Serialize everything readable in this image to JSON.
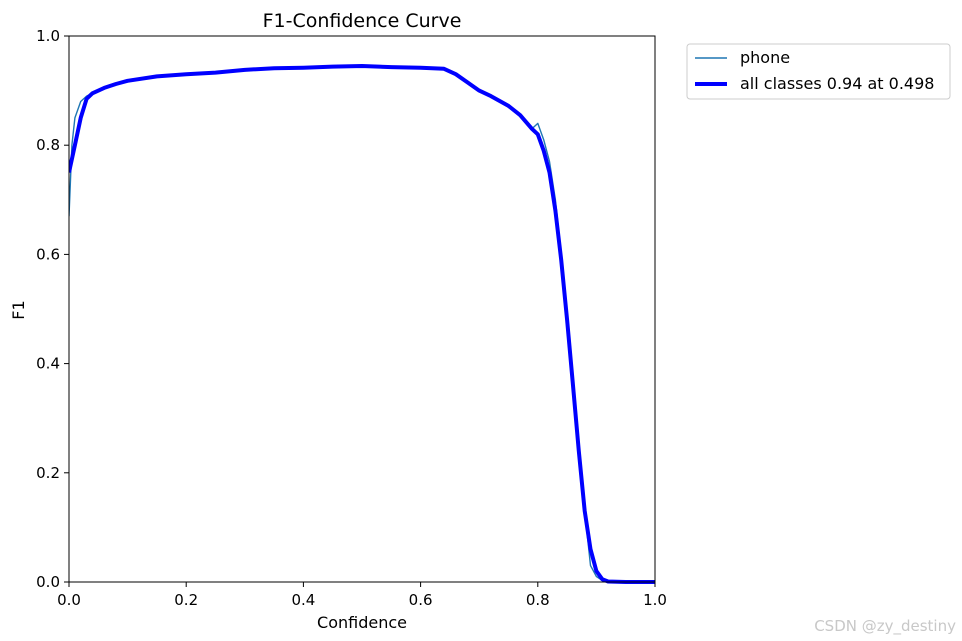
{
  "chart_data": {
    "type": "line",
    "title": "F1-Confidence Curve",
    "xlabel": "Confidence",
    "ylabel": "F1",
    "xlim": [
      0.0,
      1.0
    ],
    "ylim": [
      0.0,
      1.0
    ],
    "xticks": [
      "0.0",
      "0.2",
      "0.4",
      "0.6",
      "0.8",
      "1.0"
    ],
    "yticks": [
      "0.0",
      "0.2",
      "0.4",
      "0.6",
      "0.8",
      "1.0"
    ],
    "grid": false,
    "legend_position": "outside-top-right",
    "series": [
      {
        "name": "phone",
        "color": "#1f77b4",
        "x": [
          0.0,
          0.005,
          0.01,
          0.02,
          0.03,
          0.04,
          0.06,
          0.08,
          0.1,
          0.15,
          0.2,
          0.25,
          0.3,
          0.35,
          0.4,
          0.45,
          0.5,
          0.55,
          0.6,
          0.64,
          0.66,
          0.68,
          0.7,
          0.72,
          0.75,
          0.77,
          0.79,
          0.8,
          0.81,
          0.82,
          0.83,
          0.84,
          0.85,
          0.86,
          0.87,
          0.88,
          0.89,
          0.9,
          0.91,
          0.92,
          0.95,
          1.0
        ],
        "y": [
          0.67,
          0.8,
          0.85,
          0.88,
          0.89,
          0.895,
          0.905,
          0.912,
          0.918,
          0.926,
          0.93,
          0.933,
          0.938,
          0.941,
          0.942,
          0.944,
          0.945,
          0.943,
          0.942,
          0.94,
          0.93,
          0.915,
          0.9,
          0.89,
          0.872,
          0.855,
          0.83,
          0.84,
          0.81,
          0.77,
          0.7,
          0.6,
          0.49,
          0.37,
          0.25,
          0.13,
          0.03,
          0.01,
          0.003,
          0.001,
          0.0,
          0.0
        ]
      },
      {
        "name": "all classes 0.94 at 0.498",
        "color": "#0000ff",
        "x": [
          0.0,
          0.01,
          0.02,
          0.03,
          0.04,
          0.06,
          0.08,
          0.1,
          0.15,
          0.2,
          0.25,
          0.3,
          0.35,
          0.4,
          0.45,
          0.5,
          0.55,
          0.6,
          0.64,
          0.66,
          0.68,
          0.7,
          0.72,
          0.75,
          0.77,
          0.79,
          0.8,
          0.81,
          0.82,
          0.83,
          0.84,
          0.85,
          0.86,
          0.87,
          0.88,
          0.89,
          0.9,
          0.91,
          0.92,
          0.95,
          1.0
        ],
        "y": [
          0.75,
          0.8,
          0.85,
          0.885,
          0.895,
          0.905,
          0.912,
          0.918,
          0.926,
          0.93,
          0.933,
          0.938,
          0.941,
          0.942,
          0.944,
          0.945,
          0.943,
          0.942,
          0.94,
          0.93,
          0.915,
          0.9,
          0.89,
          0.872,
          0.855,
          0.83,
          0.82,
          0.79,
          0.75,
          0.68,
          0.59,
          0.48,
          0.36,
          0.24,
          0.13,
          0.06,
          0.02,
          0.005,
          0.001,
          0.0,
          0.0
        ]
      }
    ]
  },
  "watermark": "CSDN @zy_destiny"
}
